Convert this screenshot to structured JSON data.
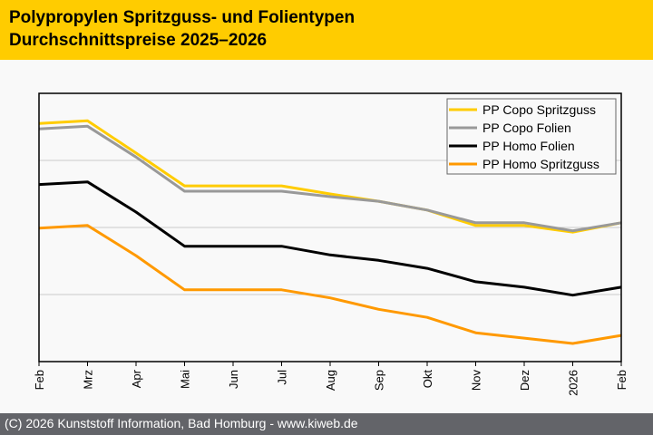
{
  "header": {
    "title_line1": "Polypropylen Spritzguss- und Folientypen",
    "title_line2": "Durchschnittspreise 2025–2026",
    "background_color": "#ffcc00"
  },
  "footer": {
    "text": "(C) 2026 Kunststoff Information, Bad Homburg - www.kiweb.de",
    "background_color": "#636469"
  },
  "chart_data": {
    "type": "line",
    "title": "Polypropylen Spritzguss- und Folientypen Durchschnittspreise 2025–2026",
    "xlabel": "",
    "ylabel": "",
    "y_units_note": "relative (no y-axis values shown)",
    "categories": [
      "Feb",
      "Mrz",
      "Apr",
      "Mai",
      "Jun",
      "Jul",
      "Aug",
      "Sep",
      "Okt",
      "Nov",
      "Dez",
      "2026",
      "Feb"
    ],
    "ylim": [
      0,
      4
    ],
    "y_gridlines": [
      1,
      2,
      3
    ],
    "grid": true,
    "legend_position": "top-right",
    "series": [
      {
        "name": "PP Copo Spritzguss",
        "color": "#ffcc00",
        "values": [
          3.55,
          3.59,
          3.11,
          2.62,
          2.62,
          2.62,
          2.5,
          2.39,
          2.26,
          2.03,
          2.03,
          1.93,
          2.07
        ]
      },
      {
        "name": "PP Copo Folien",
        "color": "#999999",
        "values": [
          3.47,
          3.51,
          3.05,
          2.54,
          2.54,
          2.54,
          2.46,
          2.39,
          2.26,
          2.07,
          2.07,
          1.95,
          2.07
        ]
      },
      {
        "name": "PP Homo Folien",
        "color": "#000000",
        "values": [
          2.64,
          2.68,
          2.23,
          1.72,
          1.72,
          1.72,
          1.59,
          1.51,
          1.39,
          1.19,
          1.11,
          0.99,
          1.11
        ]
      },
      {
        "name": "PP Homo Spritzguss",
        "color": "#ff9900",
        "values": [
          1.99,
          2.03,
          1.58,
          1.07,
          1.07,
          1.07,
          0.95,
          0.78,
          0.66,
          0.43,
          0.35,
          0.27,
          0.39
        ]
      }
    ]
  }
}
